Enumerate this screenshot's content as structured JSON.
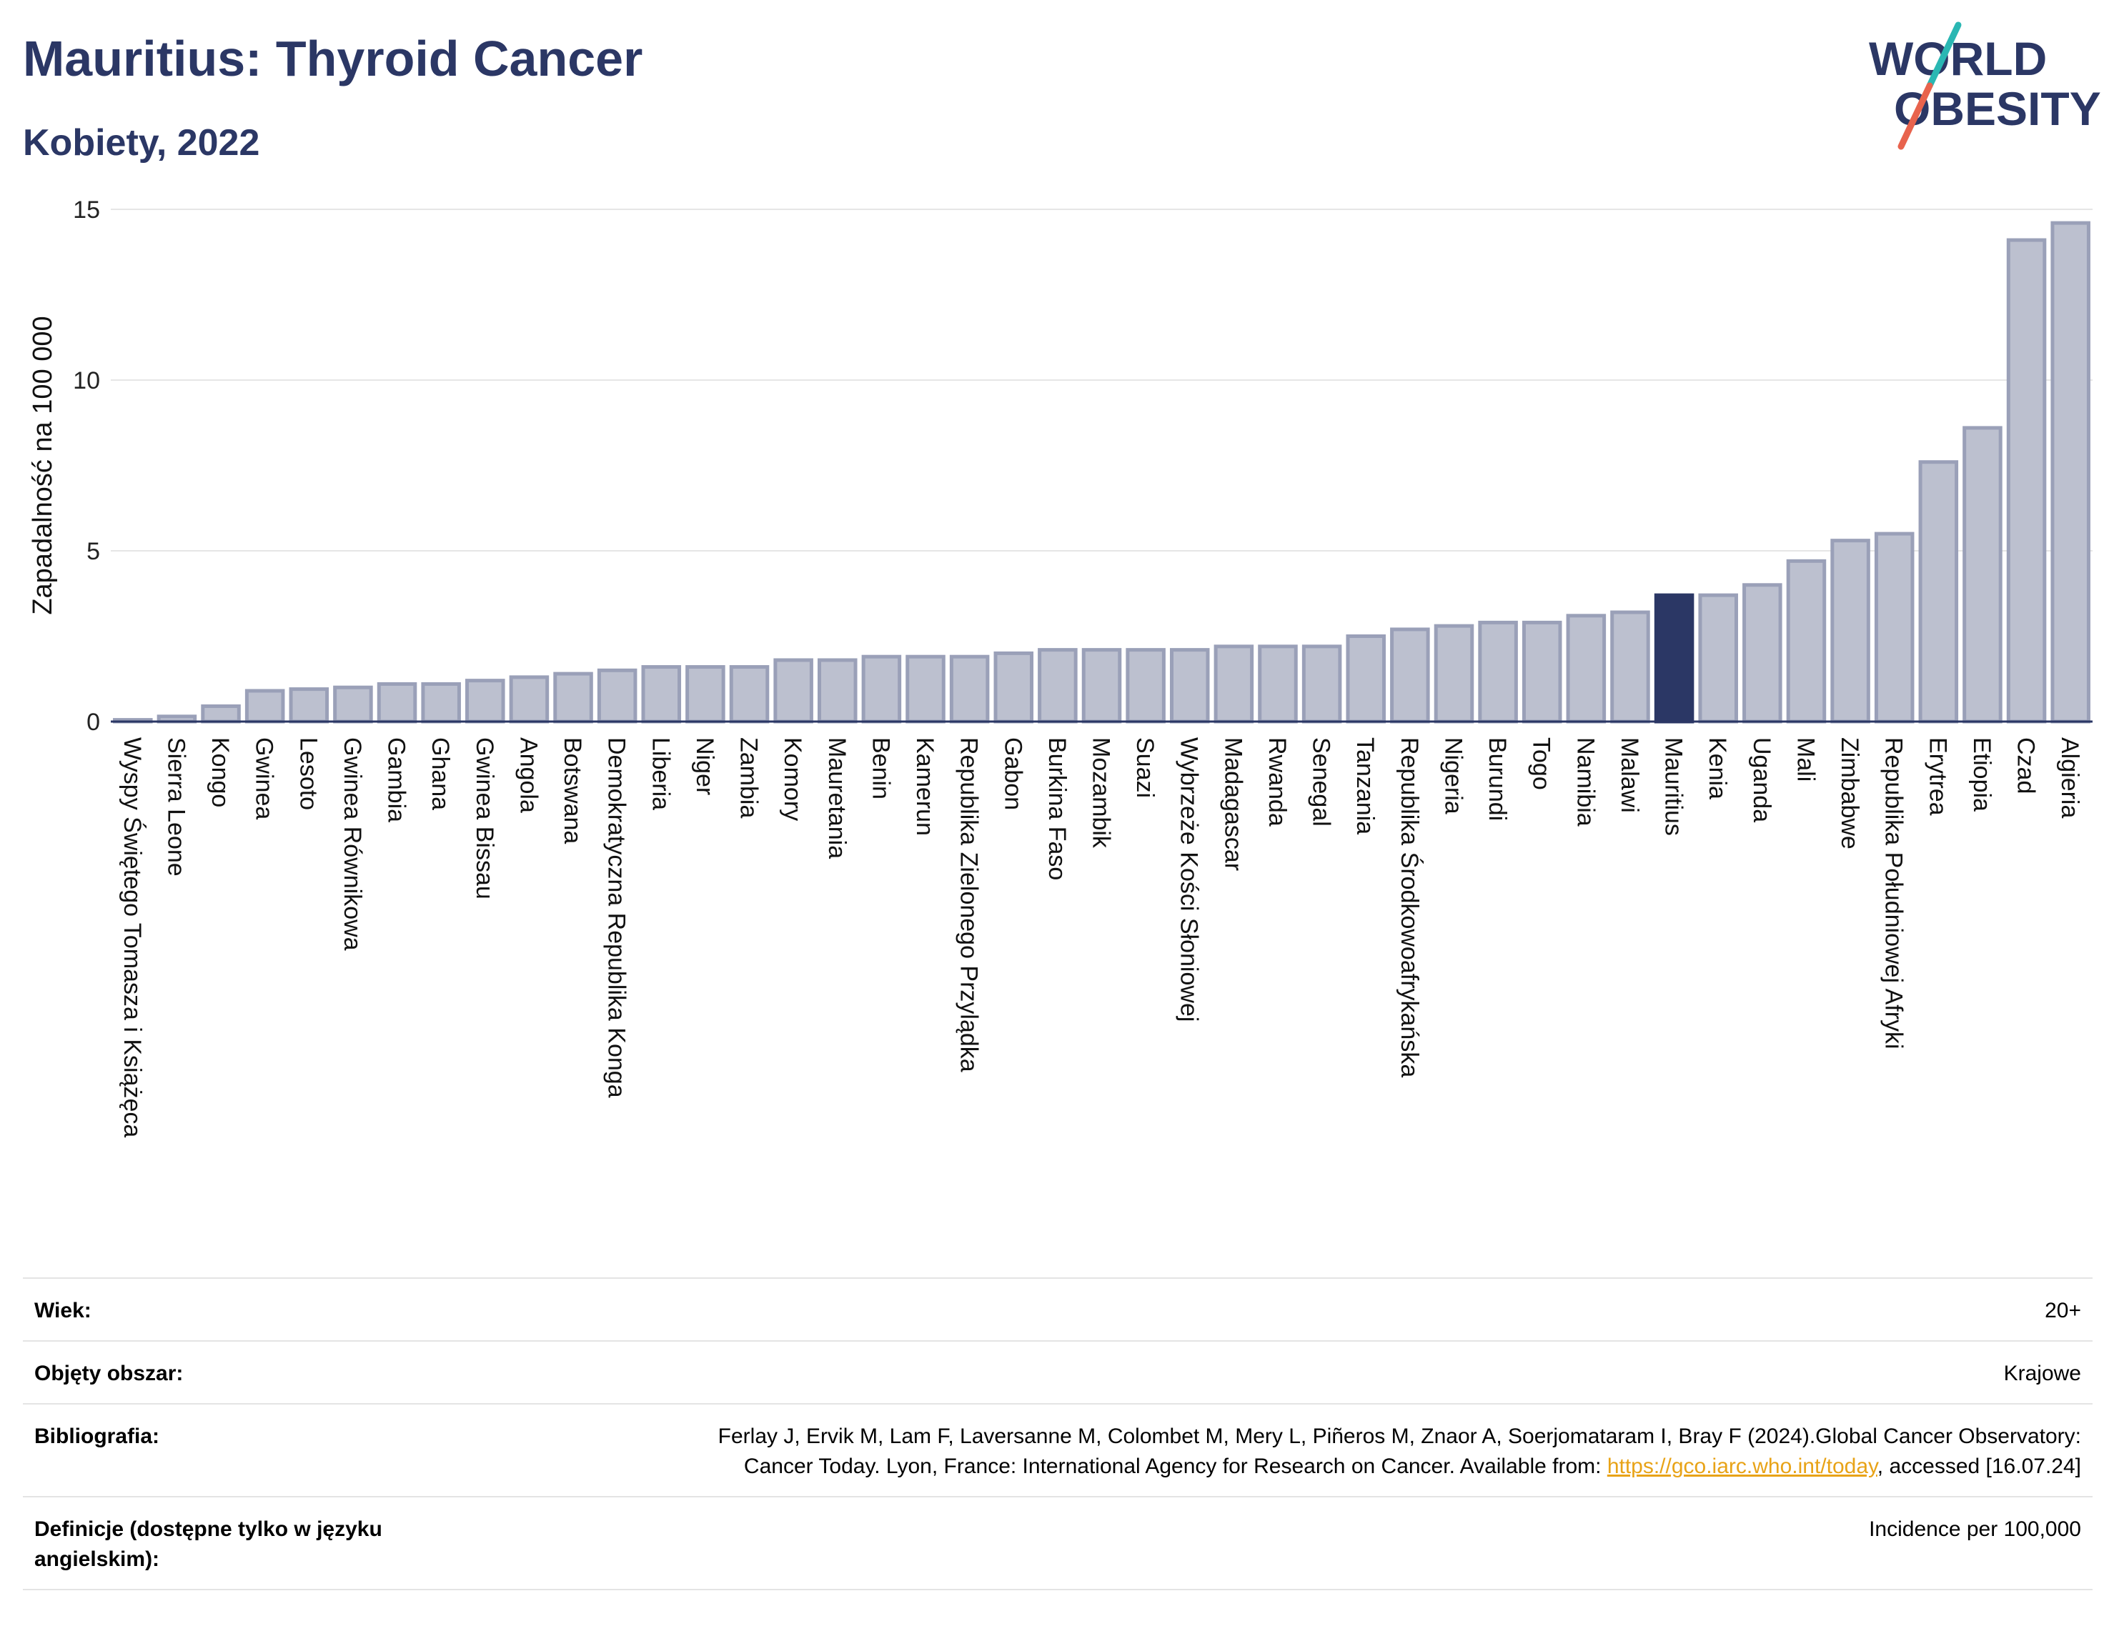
{
  "header": {
    "title": "Mauritius: Thyroid Cancer",
    "subtitle": "Kobiety, 2022"
  },
  "logo": {
    "line1": "WORLD",
    "line2": "OBESITY",
    "accent_colors": [
      "#2ab7b3",
      "#e8634d"
    ]
  },
  "colors": {
    "bar": "#bcc0cf",
    "bar_border": "#9aa0b8",
    "highlight": "#2b3765",
    "title": "#2b3765"
  },
  "chart_data": {
    "type": "bar",
    "ylabel": "Zapadalność na 100 000",
    "ylim": [
      0,
      15
    ],
    "yticks": [
      0,
      5,
      10,
      15
    ],
    "grid": true,
    "highlight": "Mauritius",
    "categories": [
      "Wyspy Świętego Tomasza i Książęca",
      "Sierra Leone",
      "Kongo",
      "Gwinea",
      "Lesoto",
      "Gwinea Równikowa",
      "Gambia",
      "Ghana",
      "Gwinea Bissau",
      "Angola",
      "Botswana",
      "Demokratyczna Republika Konga",
      "Liberia",
      "Niger",
      "Zambia",
      "Komory",
      "Mauretania",
      "Benin",
      "Kamerun",
      "Republika Zielonego Przylądka",
      "Gabon",
      "Burkina Faso",
      "Mozambik",
      "Suazi",
      "Wybrzeże Kości Słoniowej",
      "Madagascar",
      "Rwanda",
      "Senegal",
      "Tanzania",
      "Republika Środkowoafrykańska",
      "Nigeria",
      "Burundi",
      "Togo",
      "Namibia",
      "Malawi",
      "Mauritius",
      "Kenia",
      "Uganda",
      "Mali",
      "Zimbabwe",
      "Republika Południowej Afryki",
      "Erytrea",
      "Etiopia",
      "Czad",
      "Algieria"
    ],
    "values": [
      0.05,
      0.15,
      0.45,
      0.9,
      0.95,
      1.0,
      1.1,
      1.1,
      1.2,
      1.3,
      1.4,
      1.5,
      1.6,
      1.6,
      1.6,
      1.8,
      1.8,
      1.9,
      1.9,
      1.9,
      2.0,
      2.1,
      2.1,
      2.1,
      2.1,
      2.2,
      2.2,
      2.2,
      2.5,
      2.7,
      2.8,
      2.9,
      2.9,
      3.1,
      3.2,
      3.7,
      3.7,
      4.0,
      4.7,
      5.3,
      5.5,
      7.6,
      8.6,
      14.1,
      14.6
    ]
  },
  "meta": [
    {
      "key": "Wiek:",
      "value": "20+"
    },
    {
      "key": "Objęty obszar:",
      "value": "Krajowe"
    },
    {
      "key": "Bibliografia:",
      "value_pre": "Ferlay J, Ervik M, Lam F, Laversanne M, Colombet M, Mery L, Piñeros M, Znaor A, Soerjomataram I, Bray F (2024).Global Cancer Observatory: Cancer Today. Lyon, France: International Agency for Research on Cancer. Available from: ",
      "link": "https://gco.iarc.who.int/today",
      "value_post": ", accessed [16.07.24]"
    },
    {
      "key": "Definicje (dostępne tylko w języku angielskim):",
      "value": "Incidence per 100,000"
    }
  ]
}
